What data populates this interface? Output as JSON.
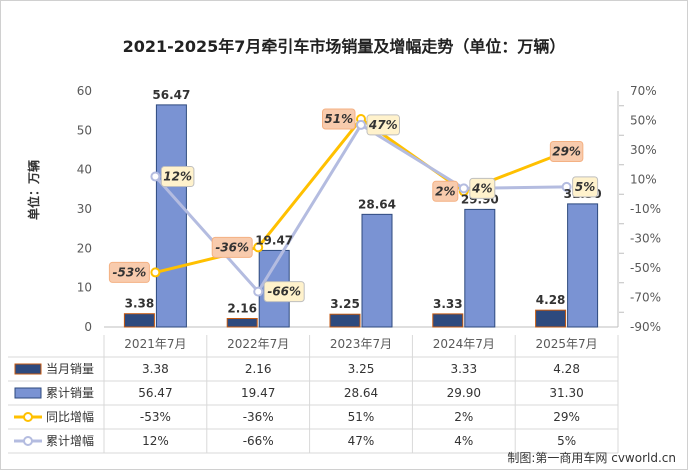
{
  "chart_data": {
    "type": "bar",
    "title": "2021-2025年7月牵引车市场销量及增幅走势（单位：万辆）",
    "ylabel": "单位：万辆",
    "categories": [
      "2021年7月",
      "2022年7月",
      "2023年7月",
      "2024年7月",
      "2025年7月"
    ],
    "ylim": [
      0,
      60
    ],
    "y_ticks": [
      "0",
      "10",
      "20",
      "30",
      "40",
      "50",
      "60"
    ],
    "y2lim": [
      -90,
      70
    ],
    "y2_ticks": [
      "-90%",
      "-70%",
      "-50%",
      "-30%",
      "-10%",
      "10%",
      "30%",
      "50%",
      "70%"
    ],
    "y2_tick_values": [
      -90,
      -70,
      -50,
      -30,
      -10,
      10,
      30,
      50,
      70
    ],
    "y2_extra_ticks": [
      "-80%",
      "-60%",
      "-40%",
      "-20%",
      "0%",
      "20%",
      "40%",
      "60%"
    ],
    "y2_extra_values": [
      -80,
      -60,
      -40,
      -20,
      0,
      20,
      40,
      60
    ],
    "series": [
      {
        "name": "当月销量",
        "kind": "bar",
        "color": "#2e4a7e",
        "values": [
          3.38,
          2.16,
          3.25,
          3.33,
          4.28
        ],
        "labels": [
          "3.38",
          "2.16",
          "3.25",
          "3.33",
          "4.28"
        ]
      },
      {
        "name": "累计销量",
        "kind": "bar",
        "color": "#7a93d3",
        "values": [
          56.47,
          19.47,
          28.64,
          29.9,
          31.3
        ],
        "labels": [
          "56.47",
          "19.47",
          "28.64",
          "29.90",
          "31.30"
        ]
      },
      {
        "name": "同比增幅",
        "kind": "line",
        "axis": "right",
        "color": "#ffc000",
        "values": [
          -53,
          -36,
          51,
          2,
          29
        ],
        "labels": [
          "-53%",
          "-36%",
          "51%",
          "2%",
          "29%"
        ]
      },
      {
        "name": "累计增幅",
        "kind": "line",
        "axis": "right",
        "color": "#b4bce0",
        "values": [
          12,
          -66,
          47,
          4,
          5
        ],
        "labels": [
          "12%",
          "-66%",
          "47%",
          "4%",
          "5%"
        ]
      }
    ],
    "table_rows": [
      [
        "3.38",
        "2.16",
        "3.25",
        "3.33",
        "4.28"
      ],
      [
        "56.47",
        "19.47",
        "28.64",
        "29.90",
        "31.30"
      ],
      [
        "-53%",
        "-36%",
        "51%",
        "2%",
        "29%"
      ],
      [
        "12%",
        "-66%",
        "47%",
        "4%",
        "5%"
      ]
    ],
    "legend": "bottom data table",
    "grid": false
  },
  "credit": "制图:第一商用车网 cvworld.cn"
}
